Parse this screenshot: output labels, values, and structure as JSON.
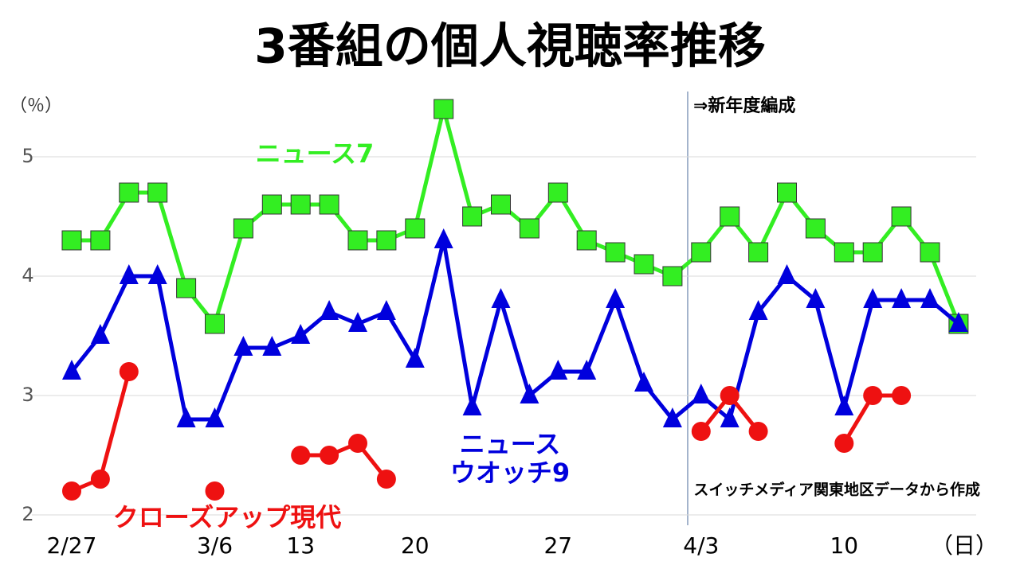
{
  "chart_data": {
    "type": "line",
    "title": "3番組の個人視聴率推移",
    "y_label": "（％）",
    "x_label": "（日）",
    "categories": [
      "2/27",
      null,
      null,
      null,
      null,
      "3/6",
      null,
      null,
      "13",
      null,
      null,
      null,
      "20",
      null,
      null,
      null,
      null,
      "27",
      null,
      null,
      null,
      null,
      "4/3",
      null,
      null,
      null,
      null,
      "10",
      null,
      null,
      null,
      null
    ],
    "series": [
      {
        "name": "ニュース7",
        "color": "#33ee22",
        "marker": "square",
        "values": [
          4.3,
          4.3,
          4.7,
          4.7,
          3.9,
          3.6,
          4.4,
          4.6,
          4.6,
          4.6,
          4.3,
          4.3,
          4.4,
          5.4,
          4.5,
          4.6,
          4.4,
          4.7,
          4.3,
          4.2,
          4.1,
          4.0,
          4.2,
          4.5,
          4.2,
          4.7,
          4.4,
          4.2,
          4.2,
          4.5,
          4.2,
          3.6
        ]
      },
      {
        "name": "ニュース\nウオッチ9",
        "color": "#0000dd",
        "marker": "triangle",
        "values": [
          3.2,
          3.5,
          4.0,
          4.0,
          2.8,
          2.8,
          3.4,
          3.4,
          3.5,
          3.7,
          3.6,
          3.7,
          3.3,
          4.3,
          2.9,
          3.8,
          3.0,
          3.2,
          3.2,
          3.8,
          3.1,
          2.8,
          3.0,
          2.8,
          3.7,
          4.0,
          3.8,
          2.9,
          3.8,
          3.8,
          3.8,
          3.6
        ]
      },
      {
        "name": "クローズアップ現代",
        "color": "#ee1111",
        "marker": "circle",
        "values": [
          2.2,
          2.3,
          3.2,
          null,
          null,
          2.2,
          null,
          null,
          2.5,
          2.5,
          2.6,
          2.3,
          null,
          null,
          null,
          null,
          null,
          null,
          null,
          null,
          null,
          null,
          2.7,
          3.0,
          2.7,
          null,
          null,
          2.6,
          3.0,
          3.0,
          null,
          null
        ]
      }
    ],
    "ylim": [
      2,
      5.5
    ],
    "yticks": [
      2,
      3,
      4,
      5
    ],
    "grid": true,
    "annotations": [
      "⇒新年度編成",
      "スイッチメディア関東地区データから作成"
    ]
  }
}
